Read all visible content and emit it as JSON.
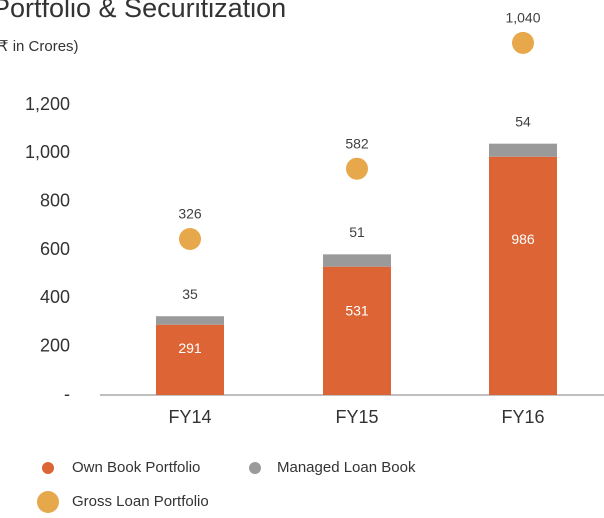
{
  "chart_data": {
    "type": "bar",
    "title": "Portfolio & Securitization",
    "subtitle": "(₹ in Crores)",
    "categories": [
      "FY14",
      "FY15",
      "FY16"
    ],
    "series": [
      {
        "name": "Own Book Portfolio",
        "color": "#dd6535",
        "values": [
          291,
          531,
          986
        ]
      },
      {
        "name": "Managed Loan Book",
        "color": "#9a9a9a",
        "values": [
          35,
          51,
          54
        ]
      },
      {
        "name": "Gross Loan Portfolio",
        "color": "#e6a84a",
        "type": "scatter",
        "axis": "y2",
        "values": [
          326,
          582,
          1040
        ],
        "value_labels": [
          "326",
          "582",
          "1,040"
        ]
      }
    ],
    "stacked": true,
    "ylim": [
      0,
      1200
    ],
    "yticks": [
      {
        "value": 0,
        "label": "-"
      },
      200,
      400,
      600,
      800,
      {
        "value": 1000,
        "label": "1,000"
      },
      {
        "value": 1200,
        "label": "1,200"
      }
    ],
    "y2lim": [
      -242,
      1087
    ],
    "grid": false,
    "legend": "bottom"
  }
}
